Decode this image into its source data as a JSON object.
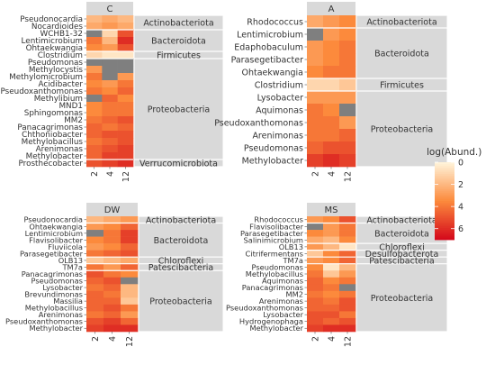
{
  "chart_data": [
    {
      "type": "heatmap",
      "title": "C",
      "x": [
        "2",
        "4",
        "12"
      ],
      "rows": [
        "Pseudonocardia",
        "Nocardioides",
        "WCHB1-32",
        "Lentimicrobium",
        "Ohtaekwangia",
        "Clostridium",
        "Pseudomonas",
        "Methylocystis",
        "Methylomicrobium",
        "Acidibacter",
        "Pseudoxanthomonas",
        "Methylibium",
        "MND1",
        "Sphingomonas",
        "MM2",
        "Panacagrimonas",
        "Chthoniobacter",
        "Methylobacillus",
        "Arenimonas",
        "Methylobacter",
        "Prosthecobacter"
      ],
      "groups": [
        {
          "label": "Actinobacteriota",
          "rows": 2
        },
        {
          "label": "Bacteroidota",
          "rows": 3
        },
        {
          "label": "Firmicutes",
          "rows": 1
        },
        {
          "label": "Proteobacteria",
          "rows": 14
        },
        {
          "label": "Verrucomicrobiota",
          "rows": 1
        }
      ],
      "values": [
        [
          2,
          2.5,
          2
        ],
        [
          2.5,
          3,
          2.5
        ],
        [
          null,
          1,
          5
        ],
        [
          4,
          2,
          6
        ],
        [
          3.5,
          3,
          5
        ],
        [
          1,
          0.5,
          0.5
        ],
        [
          null,
          null,
          null
        ],
        [
          3,
          null,
          null
        ],
        [
          4,
          null,
          3
        ],
        [
          3.5,
          3,
          4
        ],
        [
          4,
          3.5,
          4.5
        ],
        [
          null,
          4.5,
          3.5
        ],
        [
          3.5,
          4,
          4
        ],
        [
          3.5,
          4,
          4
        ],
        [
          4,
          4.5,
          5
        ],
        [
          4.5,
          4,
          4.5
        ],
        [
          4.5,
          5,
          5
        ],
        [
          4,
          4.5,
          5
        ],
        [
          4.5,
          5,
          5.5
        ],
        [
          4.5,
          5.5,
          5.5
        ],
        [
          5,
          5.5,
          6
        ]
      ]
    },
    {
      "type": "heatmap",
      "title": "A",
      "x": [
        "2",
        "4",
        "12"
      ],
      "rows": [
        "Rhodococcus",
        "Lentimicrobium",
        "Edaphobaculum",
        "Parasegetibacter",
        "Ohtaekwangia",
        "Clostridium",
        "Lysobacter",
        "Aquimonas",
        "Pseudoxanthomonas",
        "Arenimonas",
        "Pseudomonas",
        "Methylobacter"
      ],
      "groups": [
        {
          "label": "Actinobacteriota",
          "rows": 1
        },
        {
          "label": "Bacteroidota",
          "rows": 4
        },
        {
          "label": "Firmicutes",
          "rows": 1
        },
        {
          "label": "Proteobacteria",
          "rows": 6
        }
      ],
      "values": [
        [
          2.5,
          3,
          3.5
        ],
        [
          null,
          3,
          3.5
        ],
        [
          3,
          3.5,
          4
        ],
        [
          3,
          3.5,
          4
        ],
        [
          3.5,
          4,
          4
        ],
        [
          1,
          1,
          1.5
        ],
        [
          3,
          3,
          3
        ],
        [
          4,
          3.5,
          null
        ],
        [
          4,
          4,
          3
        ],
        [
          4,
          4,
          4.5
        ],
        [
          4.5,
          5,
          5
        ],
        [
          5.5,
          6,
          5.5
        ]
      ]
    },
    {
      "type": "heatmap",
      "title": "DW",
      "x": [
        "2",
        "4",
        "12"
      ],
      "rows": [
        "Pseudonocardia",
        "Ohtaekwangia",
        "Lentimicrobium",
        "Flavisolibacter",
        "Fluviicola",
        "Parasegetibacter",
        "OLB13",
        "TM7a",
        "Panacagrimonas",
        "Pseudomonas",
        "Lysobacter",
        "Brevundimonas",
        "Massilia",
        "Methylobacillus",
        "Arenimonas",
        "Pseudoxanthomonas",
        "Methylobacter"
      ],
      "groups": [
        {
          "label": "Actinobacteriota",
          "rows": 1
        },
        {
          "label": "Bacteroidota",
          "rows": 5
        },
        {
          "label": "Chloroflexi",
          "rows": 1
        },
        {
          "label": "Patescibacteria",
          "rows": 1
        },
        {
          "label": "Proteobacteria",
          "rows": 9
        }
      ],
      "values": [
        [
          2,
          2.5,
          3
        ],
        [
          3,
          3.5,
          4.5
        ],
        [
          null,
          4,
          5.5
        ],
        [
          3.5,
          4,
          5.5
        ],
        [
          3,
          3.5,
          4.5
        ],
        [
          4,
          4.5,
          5
        ],
        [
          1.5,
          2,
          2.5
        ],
        [
          4,
          3,
          4.5
        ],
        [
          5,
          4,
          3.5
        ],
        [
          4.5,
          5,
          null
        ],
        [
          4,
          4.5,
          2
        ],
        [
          4.5,
          4,
          2
        ],
        [
          4.5,
          4.5,
          1.5
        ],
        [
          4.5,
          5,
          4
        ],
        [
          4,
          4.5,
          3
        ],
        [
          5,
          5.5,
          4.5
        ],
        [
          5.5,
          6,
          6
        ]
      ]
    },
    {
      "type": "heatmap",
      "title": "MS",
      "x": [
        "2",
        "4",
        "12"
      ],
      "rows": [
        "Rhodococcus",
        "Flavisolibacter",
        "Parasegetibacter",
        "Salinimicrobium",
        "OLB13",
        "Citrifermentans",
        "TM7a",
        "Pseudomonas",
        "Methylobacillus",
        "Aquimonas",
        "Panacagrimonas",
        "MM2",
        "Arenimonas",
        "Pseudoxanthomonas",
        "Lysobacter",
        "Hydrogenophaga",
        "Methylobacter"
      ],
      "groups": [
        {
          "label": "Actinobacteriota",
          "rows": 1
        },
        {
          "label": "Bacteroidota",
          "rows": 3
        },
        {
          "label": "Chloroflexi",
          "rows": 1
        },
        {
          "label": "Desulfobacterota",
          "rows": 1
        },
        {
          "label": "Patescibacteria",
          "rows": 1
        },
        {
          "label": "Proteobacteria",
          "rows": 10
        }
      ],
      "values": [
        [
          3,
          3.5,
          5
        ],
        [
          null,
          3,
          4
        ],
        [
          3.5,
          3,
          4
        ],
        [
          2.5,
          2,
          3.5
        ],
        [
          3,
          2,
          0.5
        ],
        [
          1.5,
          3.5,
          4.5
        ],
        [
          3,
          3.5,
          4.5
        ],
        [
          3.5,
          0.5,
          2
        ],
        [
          4,
          1.5,
          3
        ],
        [
          4.5,
          3.5,
          4
        ],
        [
          4.5,
          4,
          null
        ],
        [
          4,
          3.5,
          4
        ],
        [
          4.5,
          4,
          5
        ],
        [
          4.5,
          4.5,
          5
        ],
        [
          5,
          5,
          4
        ],
        [
          5,
          4.5,
          5
        ],
        [
          5.5,
          6,
          6
        ]
      ]
    }
  ],
  "legend": {
    "title": "log(Abund.)",
    "ticks": [
      "0",
      "2",
      "4",
      "6"
    ],
    "range": [
      0,
      7
    ],
    "low_color": "#fff5dc",
    "mid_color": "#fc8a3c",
    "high_color": "#d4081b"
  },
  "na_color": "#7f7f7f",
  "strip_color": "#d9d9d9"
}
